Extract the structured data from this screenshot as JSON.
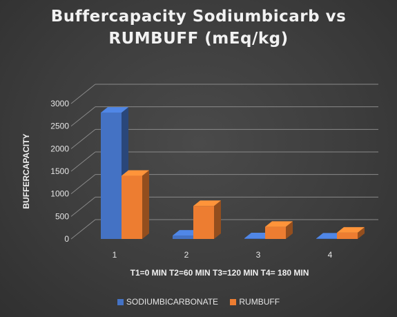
{
  "chart_data": {
    "type": "bar",
    "title_lines": [
      "Buffercapacity Sodiumbicarb vs",
      "RUMBUFF (mEq/kg)"
    ],
    "categories": [
      "1",
      "2",
      "3",
      "4"
    ],
    "series": [
      {
        "name": "SODIUMBICARBONATE",
        "values": [
          2800,
          75,
          15,
          10
        ],
        "color": "#4472c4"
      },
      {
        "name": "RUMBUFF",
        "values": [
          1400,
          730,
          270,
          140
        ],
        "color": "#ed7d31"
      }
    ],
    "xlabel": "T1=0 MIN T2=60 MIN T3=120 MIN T4= 180 MIN",
    "ylabel": "BUFFERCAPACITY",
    "ylim": [
      0,
      3000
    ],
    "yticks": [
      0,
      500,
      1000,
      1500,
      2000,
      2500,
      3000
    ],
    "grid": true,
    "legend_position": "bottom",
    "three_d": true
  }
}
